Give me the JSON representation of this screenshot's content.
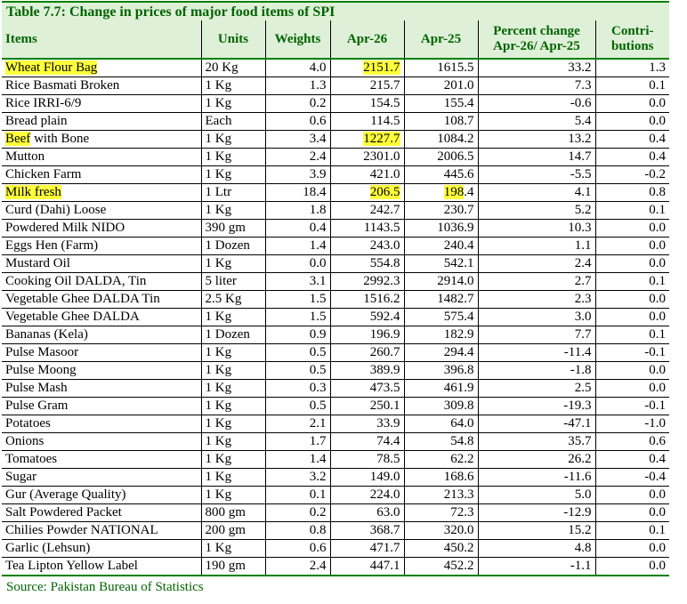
{
  "title": "Table 7.7: Change in prices of major food items of SPI",
  "headers": {
    "items": "Items",
    "units": "Units",
    "weights": "Weights",
    "apr26": "Apr-26",
    "apr25": "Apr-25",
    "pct_line1": "Percent change",
    "pct_line2": "Apr-26/ Apr-25",
    "contrib_line1": "Contri-",
    "contrib_line2": "butions"
  },
  "rows": [
    {
      "item": "Wheat Flour Bag",
      "unit": "20 Kg",
      "weight": "4.0",
      "apr26": "2151.7",
      "apr25": "1615.5",
      "pct": "33.2",
      "contrib": "1.3"
    },
    {
      "item": "Rice Basmati Broken",
      "unit": "1 Kg",
      "weight": "1.3",
      "apr26": "215.7",
      "apr25": "201.0",
      "pct": "7.3",
      "contrib": "0.1"
    },
    {
      "item": "Rice IRRI-6/9",
      "unit": "1 Kg",
      "weight": "0.2",
      "apr26": "154.5",
      "apr25": "155.4",
      "pct": "-0.6",
      "contrib": "0.0"
    },
    {
      "item": "Bread plain",
      "unit": "Each",
      "weight": "0.6",
      "apr26": "114.5",
      "apr25": "108.7",
      "pct": "5.4",
      "contrib": "0.0"
    },
    {
      "item": "Beef with Bone",
      "unit": "1 Kg",
      "weight": "3.4",
      "apr26": "1227.7",
      "apr25": "1084.2",
      "pct": "13.2",
      "contrib": "0.4"
    },
    {
      "item": "Mutton",
      "unit": "1 Kg",
      "weight": "2.4",
      "apr26": "2301.0",
      "apr25": "2006.5",
      "pct": "14.7",
      "contrib": "0.4"
    },
    {
      "item": "Chicken Farm",
      "unit": "1 Kg",
      "weight": "3.9",
      "apr26": "421.0",
      "apr25": "445.6",
      "pct": "-5.5",
      "contrib": "-0.2"
    },
    {
      "item": "Milk fresh",
      "unit": "1 Ltr",
      "weight": "18.4",
      "apr26": "206.5",
      "apr25": "198.4",
      "pct": "4.1",
      "contrib": "0.8"
    },
    {
      "item": "Curd (Dahi) Loose",
      "unit": "1 Kg",
      "weight": "1.8",
      "apr26": "242.7",
      "apr25": "230.7",
      "pct": "5.2",
      "contrib": "0.1"
    },
    {
      "item": "Powdered Milk NIDO",
      "unit": "390 gm",
      "weight": "0.4",
      "apr26": "1143.5",
      "apr25": "1036.9",
      "pct": "10.3",
      "contrib": "0.0"
    },
    {
      "item": "Eggs Hen (Farm)",
      "unit": "1 Dozen",
      "weight": "1.4",
      "apr26": "243.0",
      "apr25": "240.4",
      "pct": "1.1",
      "contrib": "0.0"
    },
    {
      "item": "Mustard Oil",
      "unit": "1 Kg",
      "weight": "0.0",
      "apr26": "554.8",
      "apr25": "542.1",
      "pct": "2.4",
      "contrib": "0.0"
    },
    {
      "item": "Cooking Oil DALDA, Tin",
      "unit": "5 liter",
      "weight": "3.1",
      "apr26": "2992.3",
      "apr25": "2914.0",
      "pct": "2.7",
      "contrib": "0.1"
    },
    {
      "item": "Vegetable Ghee DALDA Tin",
      "unit": "2.5 Kg",
      "weight": "1.5",
      "apr26": "1516.2",
      "apr25": "1482.7",
      "pct": "2.3",
      "contrib": "0.0"
    },
    {
      "item": "Vegetable Ghee DALDA",
      "unit": "1 Kg",
      "weight": "1.5",
      "apr26": "592.4",
      "apr25": "575.4",
      "pct": "3.0",
      "contrib": "0.0"
    },
    {
      "item": "Bananas (Kela)",
      "unit": "1 Dozen",
      "weight": "0.9",
      "apr26": "196.9",
      "apr25": "182.9",
      "pct": "7.7",
      "contrib": "0.1"
    },
    {
      "item": "Pulse Masoor",
      "unit": "1 Kg",
      "weight": "0.5",
      "apr26": "260.7",
      "apr25": "294.4",
      "pct": "-11.4",
      "contrib": "-0.1"
    },
    {
      "item": "Pulse Moong",
      "unit": "1 Kg",
      "weight": "0.5",
      "apr26": "389.9",
      "apr25": "396.8",
      "pct": "-1.8",
      "contrib": "0.0"
    },
    {
      "item": "Pulse Mash",
      "unit": "1 Kg",
      "weight": "0.3",
      "apr26": "473.5",
      "apr25": "461.9",
      "pct": "2.5",
      "contrib": "0.0"
    },
    {
      "item": "Pulse Gram",
      "unit": "1 Kg",
      "weight": "0.5",
      "apr26": "250.1",
      "apr25": "309.8",
      "pct": "-19.3",
      "contrib": "-0.1"
    },
    {
      "item": "Potatoes",
      "unit": "1 Kg",
      "weight": "2.1",
      "apr26": "33.9",
      "apr25": "64.0",
      "pct": "-47.1",
      "contrib": "-1.0"
    },
    {
      "item": "Onions",
      "unit": "1 Kg",
      "weight": "1.7",
      "apr26": "74.4",
      "apr25": "54.8",
      "pct": "35.7",
      "contrib": "0.6"
    },
    {
      "item": "Tomatoes",
      "unit": "1 Kg",
      "weight": "1.4",
      "apr26": "78.5",
      "apr25": "62.2",
      "pct": "26.2",
      "contrib": "0.4"
    },
    {
      "item": "Sugar",
      "unit": "1 Kg",
      "weight": "3.2",
      "apr26": "149.0",
      "apr25": "168.6",
      "pct": "-11.6",
      "contrib": "-0.4"
    },
    {
      "item": "Gur (Average Quality)",
      "unit": "1 Kg",
      "weight": "0.1",
      "apr26": "224.0",
      "apr25": "213.3",
      "pct": "5.0",
      "contrib": "0.0"
    },
    {
      "item": "Salt Powdered Packet",
      "unit": "800 gm",
      "weight": "0.2",
      "apr26": "63.0",
      "apr25": "72.3",
      "pct": "-12.9",
      "contrib": "0.0"
    },
    {
      "item": "Chilies Powder NATIONAL",
      "unit": "200 gm",
      "weight": "0.8",
      "apr26": "368.7",
      "apr25": "320.0",
      "pct": "15.2",
      "contrib": "0.1"
    },
    {
      "item": "Garlic (Lehsun)",
      "unit": "1 Kg",
      "weight": "0.6",
      "apr26": "471.7",
      "apr25": "450.2",
      "pct": "4.8",
      "contrib": "0.0"
    },
    {
      "item": "Tea Lipton Yellow Label",
      "unit": "190 gm",
      "weight": "2.4",
      "apr26": "447.1",
      "apr25": "452.2",
      "pct": "-1.1",
      "contrib": "0.0"
    }
  ],
  "highlights": [
    {
      "row": 0,
      "col": "item"
    },
    {
      "row": 0,
      "col": "apr26"
    },
    {
      "row": 4,
      "col": "item",
      "chars": 4
    },
    {
      "row": 4,
      "col": "apr26"
    },
    {
      "row": 7,
      "col": "item"
    },
    {
      "row": 7,
      "col": "apr26"
    },
    {
      "row": 7,
      "col": "apr25",
      "chars": 3
    }
  ],
  "colors": {
    "header_bg": "#dff0d8",
    "header_text": "#006400",
    "rule": "#008000",
    "highlight": "#ffff3c"
  },
  "source": "Source: Pakistan Bureau of Statistics"
}
